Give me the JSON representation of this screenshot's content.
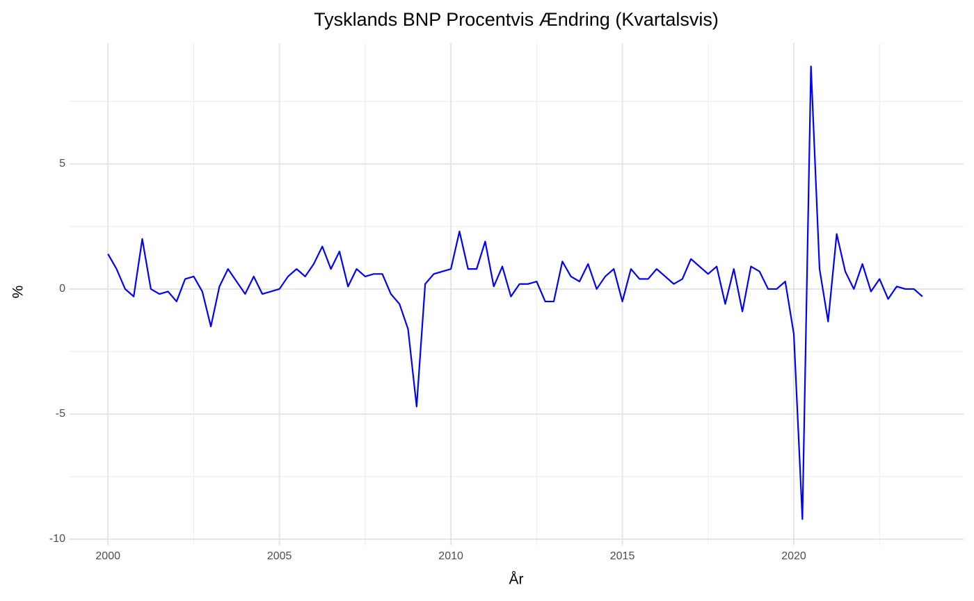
{
  "chart_data": {
    "type": "line",
    "title": "Tysklands BNP Procentvis Ændring (Kvartalsvis)",
    "x_label": "År",
    "y_label": "%",
    "x": [
      2000,
      2000.25,
      2000.5,
      2000.75,
      2001,
      2001.25,
      2001.5,
      2001.75,
      2002,
      2002.25,
      2002.5,
      2002.75,
      2003,
      2003.25,
      2003.5,
      2003.75,
      2004,
      2004.25,
      2004.5,
      2004.75,
      2005,
      2005.25,
      2005.5,
      2005.75,
      2006,
      2006.25,
      2006.5,
      2006.75,
      2007,
      2007.25,
      2007.5,
      2007.75,
      2008,
      2008.25,
      2008.5,
      2008.75,
      2009,
      2009.25,
      2009.5,
      2009.75,
      2010,
      2010.25,
      2010.5,
      2010.75,
      2011,
      2011.25,
      2011.5,
      2011.75,
      2012,
      2012.25,
      2012.5,
      2012.75,
      2013,
      2013.25,
      2013.5,
      2013.75,
      2014,
      2014.25,
      2014.5,
      2014.75,
      2015,
      2015.25,
      2015.5,
      2015.75,
      2016,
      2016.25,
      2016.5,
      2016.75,
      2017,
      2017.25,
      2017.5,
      2017.75,
      2018,
      2018.25,
      2018.5,
      2018.75,
      2019,
      2019.25,
      2019.5,
      2019.75,
      2020,
      2020.25,
      2020.5,
      2020.75,
      2021,
      2021.25,
      2021.5,
      2021.75,
      2022,
      2022.25,
      2022.5,
      2022.75,
      2023,
      2023.25,
      2023.5,
      2023.75
    ],
    "series": [
      {
        "name": "BNP",
        "color": "#0000ff",
        "values": [
          1.4,
          0.8,
          0.0,
          -0.3,
          2.0,
          0.0,
          -0.2,
          -0.1,
          -0.5,
          0.4,
          0.5,
          -0.1,
          -1.5,
          0.1,
          0.8,
          0.3,
          -0.2,
          0.5,
          -0.2,
          -0.1,
          0.0,
          0.5,
          0.8,
          0.5,
          1.0,
          1.7,
          0.8,
          1.5,
          0.1,
          0.8,
          0.5,
          0.6,
          0.6,
          -0.2,
          -0.6,
          -1.6,
          -4.7,
          0.2,
          0.6,
          0.7,
          0.8,
          2.3,
          0.8,
          0.8,
          1.9,
          0.1,
          0.9,
          -0.3,
          0.2,
          0.2,
          0.3,
          -0.5,
          -0.5,
          1.1,
          0.5,
          0.3,
          1.0,
          0.0,
          0.5,
          0.8,
          -0.5,
          0.8,
          0.4,
          0.4,
          0.8,
          0.5,
          0.2,
          0.4,
          1.2,
          0.9,
          0.6,
          0.9,
          -0.6,
          0.8,
          -0.9,
          0.9,
          0.7,
          0.0,
          0.0,
          0.3,
          -1.8,
          -9.2,
          8.9,
          0.8,
          -1.3,
          2.2,
          0.7,
          0.0,
          1.0,
          -0.1,
          0.4,
          -0.4,
          0.1,
          0.0,
          0.0,
          -0.3
        ]
      }
    ],
    "xlim": [
      1998.88,
      2024.95
    ],
    "xticks": [
      2000,
      2005,
      2010,
      2015,
      2020
    ],
    "ylim": [
      -10.25,
      9.83
    ],
    "yticks": [
      -10,
      -5,
      0,
      5
    ],
    "grid": true
  }
}
